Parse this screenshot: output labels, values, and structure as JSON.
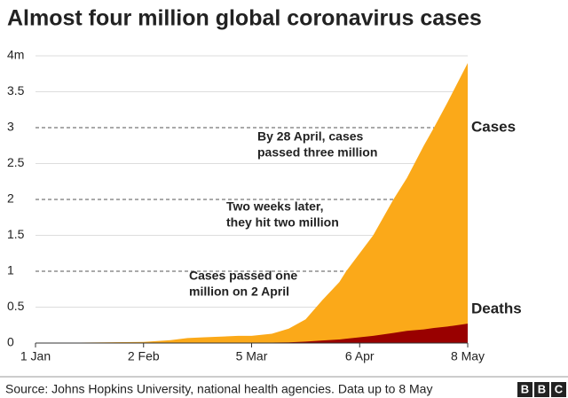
{
  "chart_data": {
    "type": "area",
    "title": "Almost four million global coronavirus cases",
    "x": [
      0,
      20,
      32,
      40,
      45,
      50,
      60,
      64,
      70,
      75,
      80,
      85,
      90,
      92,
      100,
      106,
      110,
      115,
      118,
      122,
      128
    ],
    "series": [
      {
        "name": "Cases",
        "color": "#fba919",
        "values": [
          0,
          0.01,
          0.015,
          0.04,
          0.07,
          0.08,
          0.1,
          0.1,
          0.13,
          0.2,
          0.33,
          0.6,
          0.85,
          1.0,
          1.5,
          2.0,
          2.3,
          2.75,
          3.0,
          3.35,
          3.9
        ]
      },
      {
        "name": "Deaths",
        "color": "#990000",
        "values": [
          0,
          0,
          0,
          0,
          0,
          0,
          0.001,
          0.002,
          0.006,
          0.01,
          0.02,
          0.035,
          0.05,
          0.06,
          0.1,
          0.14,
          0.17,
          0.19,
          0.21,
          0.23,
          0.27
        ]
      }
    ],
    "xlim": [
      0,
      128
    ],
    "xticks": [
      {
        "value": 0,
        "label": "1 Jan"
      },
      {
        "value": 32,
        "label": "2 Feb"
      },
      {
        "value": 64,
        "label": "5 Mar"
      },
      {
        "value": 96,
        "label": "6 Apr"
      },
      {
        "value": 128,
        "label": "8 May"
      }
    ],
    "ylim": [
      0,
      4
    ],
    "yticks": [
      0,
      0.5,
      1,
      1.5,
      2,
      2.5,
      3,
      3.5,
      {
        "value": 4,
        "label": "4m"
      }
    ],
    "grid": true,
    "annotations": [
      {
        "lines": [
          "By 28 April, cases",
          "passed three million"
        ]
      },
      {
        "lines": [
          "Two weeks later,",
          "they hit two million"
        ]
      },
      {
        "lines": [
          "Cases passed one",
          "million on 2 April"
        ]
      }
    ],
    "source": "Source: Johns Hopkins University, national health agencies. Data up to 8 May",
    "logo": [
      "B",
      "B",
      "C"
    ]
  }
}
